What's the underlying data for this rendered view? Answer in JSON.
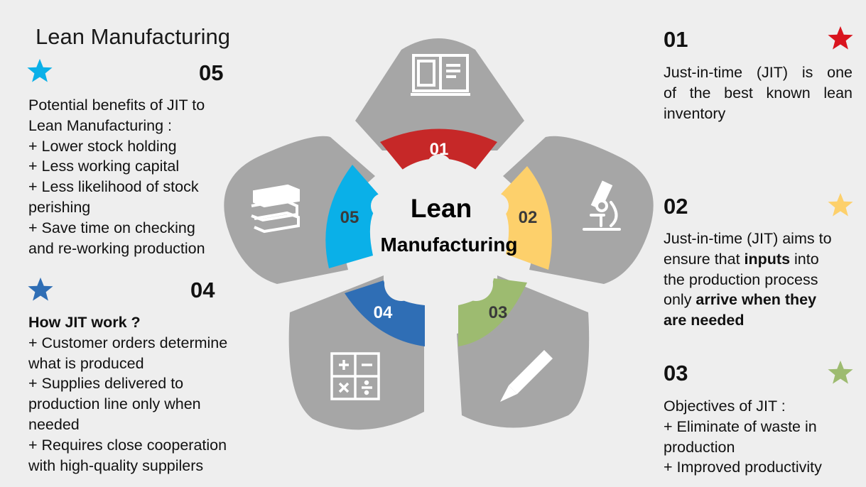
{
  "title": "Lean Manufacturing",
  "center": {
    "line1": "Lean",
    "line2": "Manufacturing"
  },
  "segments": [
    {
      "label": "01",
      "color": "#c62828",
      "icon": "open-book-icon"
    },
    {
      "label": "02",
      "color": "#fdd06b",
      "icon": "microscope-icon"
    },
    {
      "label": "03",
      "color": "#9dbb70",
      "icon": "pencil-icon"
    },
    {
      "label": "04",
      "color": "#2f6eb5",
      "icon": "calculator-icon"
    },
    {
      "label": "05",
      "color": "#0ab0e8",
      "icon": "book-stack-icon"
    }
  ],
  "panels": {
    "p01": {
      "number": "01",
      "star_color": "#d9141e",
      "text": "Just-in-time (JIT) is one of the best known lean inventory",
      "lines": [
        "Just-in-time (JIT) is one",
        "of the best known lean",
        "inventory"
      ]
    },
    "p02": {
      "number": "02",
      "star_color": "#fdd06b",
      "l1": "Just-in-time (JIT) aims to",
      "l2a": "ensure that ",
      "l2b": "inputs",
      "l2c": " into",
      "l3": "the production process",
      "l4a": "only ",
      "l4b": "arrive when they",
      "l5": "are needed"
    },
    "p03": {
      "number": "03",
      "star_color": "#9dbb70",
      "lines": [
        "Objectives of JIT :",
        "+ Eliminate of waste in",
        "production",
        "+ Improved productivity"
      ]
    },
    "p04": {
      "number": "04",
      "star_color": "#2f6eb5",
      "heading": "How JIT work ?",
      "lines": [
        "+ Customer orders determine",
        "what is produced",
        "+ Supplies delivered to",
        "production line only when",
        "needed",
        "+ Requires close cooperation",
        "with high-quality suppilers"
      ]
    },
    "p05": {
      "number": "05",
      "star_color": "#0ab0e8",
      "lines": [
        "Potential benefits of JIT to",
        "Lean Manufacturing :",
        "+ Lower stock holding",
        "+ Less working capital",
        "+ Less likelihood of stock",
        "perishing",
        "+ Save time on checking",
        "and re-working production"
      ]
    }
  }
}
